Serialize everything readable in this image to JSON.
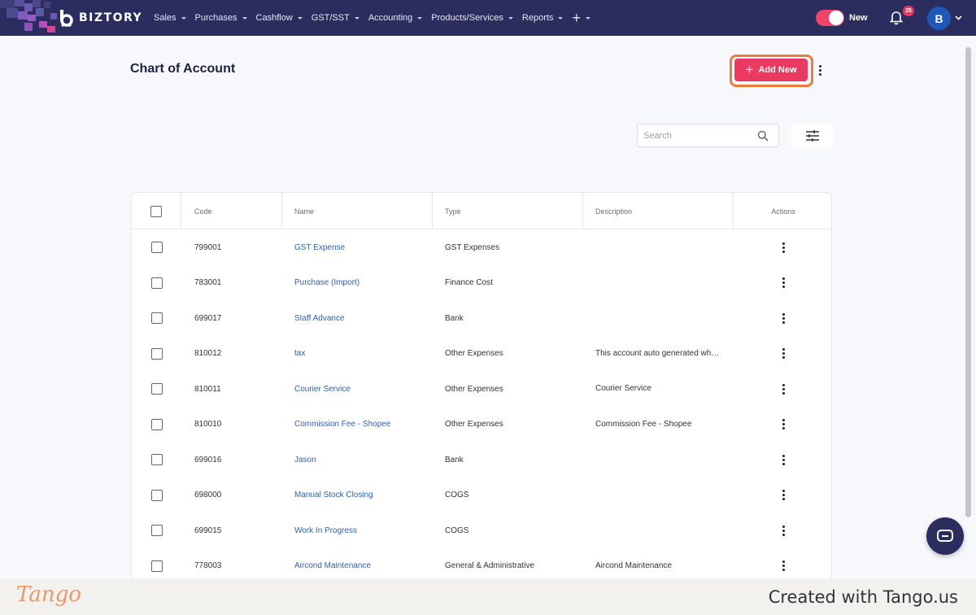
{
  "brand": {
    "name": "BIZTORY"
  },
  "nav": {
    "items": [
      {
        "label": "Sales"
      },
      {
        "label": "Purchases"
      },
      {
        "label": "Cashflow"
      },
      {
        "label": "GST/SST"
      },
      {
        "label": "Accounting"
      },
      {
        "label": "Products/Services"
      },
      {
        "label": "Reports"
      }
    ],
    "plus_label": "+"
  },
  "header": {
    "toggle_label": "New",
    "notification_count": "25",
    "avatar_initial": "B"
  },
  "page": {
    "title": "Chart of Account",
    "add_new_label": "Add New",
    "search_placeholder": "Search"
  },
  "table": {
    "columns": [
      "Code",
      "Name",
      "Type",
      "Description",
      "Actions"
    ],
    "rows": [
      {
        "code": "799001",
        "name": "GST Expense",
        "type": "GST Expenses",
        "description": ""
      },
      {
        "code": "783001",
        "name": "Purchase (Import)",
        "type": "Finance Cost",
        "description": ""
      },
      {
        "code": "699017",
        "name": "Staff Advance",
        "type": "Bank",
        "description": ""
      },
      {
        "code": "810012",
        "name": "tax",
        "type": "Other Expenses",
        "description": "This account auto generated wh…"
      },
      {
        "code": "810011",
        "name": "Courier Service",
        "type": "Other Expenses",
        "description": "Courier Service"
      },
      {
        "code": "810010",
        "name": "Commission Fee - Shopee",
        "type": "Other Expenses",
        "description": "Commission Fee - Shopee"
      },
      {
        "code": "699016",
        "name": "Jason",
        "type": "Bank",
        "description": ""
      },
      {
        "code": "698000",
        "name": "Manual Stock Closing",
        "type": "COGS",
        "description": ""
      },
      {
        "code": "699015",
        "name": "Work In Progress",
        "type": "COGS",
        "description": ""
      },
      {
        "code": "778003",
        "name": "Aircond Maintenance",
        "type": "General & Administrative",
        "description": "Aircond Maintenance"
      }
    ]
  },
  "footer": {
    "tango_logo": "Tango",
    "created_with": "Created with Tango.us"
  },
  "colors": {
    "nav_bg": "#2a2d5e",
    "accent": "#ea3a62",
    "highlight": "#f07a3a",
    "link": "#2b62b0"
  }
}
